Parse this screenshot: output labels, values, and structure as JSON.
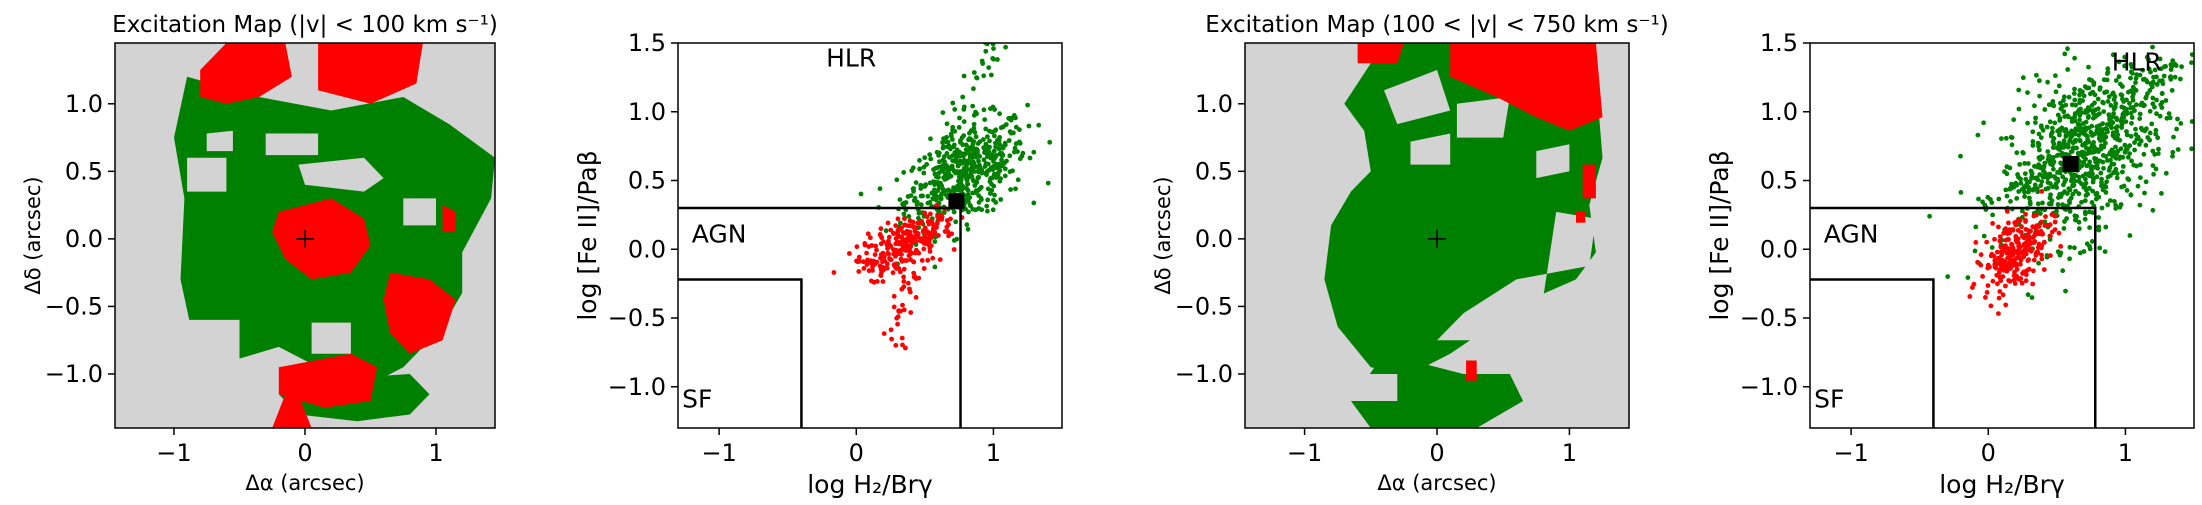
{
  "chart_data": [
    {
      "type": "heatmap",
      "title": "Excitation Map (|v| < 100 km s⁻¹)",
      "xlabel": "Δα (arcsec)",
      "ylabel": "Δδ (arcsec)",
      "xlim": [
        -1.45,
        1.45
      ],
      "ylim": [
        -1.4,
        1.45
      ],
      "xticks": [
        -1,
        0,
        1
      ],
      "yticks": [
        -1.0,
        -0.5,
        0.0,
        0.5,
        1.0
      ],
      "background_color": "#d3d3d3",
      "region_colors": {
        "HLR": "#008000",
        "AGN": "#ff0000"
      },
      "green_regions": [
        [
          [
            -0.9,
            1.2
          ],
          [
            -0.35,
            1.05
          ],
          [
            0.2,
            0.95
          ],
          [
            0.75,
            1.05
          ],
          [
            1.1,
            0.85
          ],
          [
            1.45,
            0.6
          ],
          [
            1.42,
            0.3
          ],
          [
            1.2,
            -0.1
          ],
          [
            1.2,
            -0.4
          ],
          [
            1.05,
            -0.65
          ],
          [
            0.75,
            -0.95
          ],
          [
            0.55,
            -1.05
          ],
          [
            0.1,
            -0.95
          ],
          [
            -0.2,
            -0.8
          ],
          [
            -0.55,
            -0.9
          ],
          [
            -0.85,
            -0.75
          ],
          [
            -0.95,
            -0.3
          ],
          [
            -0.92,
            0.3
          ],
          [
            -1.0,
            0.75
          ]
        ],
        [
          [
            0.0,
            -1.05
          ],
          [
            0.8,
            -1.0
          ],
          [
            0.95,
            -1.15
          ],
          [
            0.8,
            -1.3
          ],
          [
            0.4,
            -1.35
          ],
          [
            -0.05,
            -1.3
          ],
          [
            -0.2,
            -1.15
          ]
        ]
      ],
      "grey_holes": [
        [
          [
            -0.75,
            0.78
          ],
          [
            -0.55,
            0.8
          ],
          [
            -0.55,
            0.65
          ],
          [
            -0.75,
            0.65
          ]
        ],
        [
          [
            -0.3,
            0.78
          ],
          [
            0.1,
            0.78
          ],
          [
            0.1,
            0.62
          ],
          [
            -0.3,
            0.62
          ]
        ],
        [
          [
            -0.9,
            0.6
          ],
          [
            -0.6,
            0.6
          ],
          [
            -0.6,
            0.35
          ],
          [
            -0.9,
            0.35
          ]
        ],
        [
          [
            -0.05,
            0.55
          ],
          [
            0.45,
            0.6
          ],
          [
            0.6,
            0.45
          ],
          [
            0.45,
            0.35
          ],
          [
            0.0,
            0.4
          ]
        ],
        [
          [
            0.75,
            0.3
          ],
          [
            1.0,
            0.3
          ],
          [
            1.0,
            0.1
          ],
          [
            0.75,
            0.1
          ]
        ],
        [
          [
            -0.9,
            -0.6
          ],
          [
            -0.5,
            -0.6
          ],
          [
            -0.5,
            -0.9
          ],
          [
            -0.9,
            -0.9
          ]
        ],
        [
          [
            0.05,
            -0.62
          ],
          [
            0.35,
            -0.62
          ],
          [
            0.35,
            -0.85
          ],
          [
            0.05,
            -0.85
          ]
        ]
      ],
      "red_regions": [
        [
          [
            -0.6,
            1.45
          ],
          [
            -0.15,
            1.45
          ],
          [
            -0.1,
            1.2
          ],
          [
            -0.35,
            1.05
          ],
          [
            -0.6,
            1.0
          ],
          [
            -0.8,
            1.05
          ],
          [
            -0.8,
            1.25
          ]
        ],
        [
          [
            0.1,
            1.45
          ],
          [
            0.9,
            1.45
          ],
          [
            0.85,
            1.15
          ],
          [
            0.5,
            1.0
          ],
          [
            0.1,
            1.1
          ]
        ],
        [
          [
            -0.2,
            0.2
          ],
          [
            0.2,
            0.3
          ],
          [
            0.45,
            0.15
          ],
          [
            0.5,
            -0.05
          ],
          [
            0.35,
            -0.25
          ],
          [
            0.05,
            -0.3
          ],
          [
            -0.15,
            -0.15
          ],
          [
            -0.25,
            0.05
          ]
        ],
        [
          [
            1.05,
            0.25
          ],
          [
            1.15,
            0.2
          ],
          [
            1.15,
            0.05
          ],
          [
            1.05,
            0.05
          ]
        ],
        [
          [
            0.65,
            -0.25
          ],
          [
            0.95,
            -0.3
          ],
          [
            1.15,
            -0.45
          ],
          [
            1.05,
            -0.75
          ],
          [
            0.8,
            -0.85
          ],
          [
            0.65,
            -0.7
          ],
          [
            0.6,
            -0.45
          ]
        ],
        [
          [
            -0.2,
            -0.95
          ],
          [
            0.35,
            -0.85
          ],
          [
            0.55,
            -0.95
          ],
          [
            0.5,
            -1.2
          ],
          [
            0.15,
            -1.25
          ],
          [
            -0.2,
            -1.15
          ]
        ],
        [
          [
            -0.15,
            -1.15
          ],
          [
            -0.05,
            -1.15
          ],
          [
            0.05,
            -1.4
          ],
          [
            -0.25,
            -1.4
          ]
        ]
      ],
      "center_marker": [
        0,
        0
      ]
    },
    {
      "type": "scatter",
      "xlabel": "log H₂/Brγ",
      "ylabel": "log [Fe II]/Paβ",
      "xlim": [
        -1.3,
        1.5
      ],
      "ylim": [
        -1.3,
        1.5
      ],
      "xticks": [
        -1,
        0,
        1
      ],
      "yticks": [
        -1.0,
        -0.5,
        0.0,
        0.5,
        1.0,
        1.5
      ],
      "region_labels": [
        {
          "text": "HLR",
          "x": -0.22,
          "y": 1.33,
          "color": "#008000"
        },
        {
          "text": "AGN",
          "x": -1.2,
          "y": 0.05,
          "color": "#ff0000"
        },
        {
          "text": "SF",
          "x": -1.27,
          "y": -1.15,
          "color": "#0000cc"
        }
      ],
      "boundaries": {
        "agn_line": {
          "x": [
            -1.3,
            0.76,
            0.76
          ],
          "y": [
            0.3,
            0.3,
            -1.3
          ]
        },
        "sf_line": {
          "x": [
            -1.3,
            -0.4,
            -0.4
          ],
          "y": [
            -0.22,
            -0.22,
            -1.3
          ]
        }
      },
      "series": [
        {
          "color": "#008000",
          "center": [
            0.8,
            0.55
          ],
          "spread": [
            0.22,
            0.17
          ],
          "count": 520,
          "tail": {
            "from": [
              0.4,
              0.3
            ],
            "to": [
              1.0,
              1.5
            ],
            "count": 50
          }
        },
        {
          "color": "#ff0000",
          "center": [
            0.35,
            0.03
          ],
          "spread": [
            0.18,
            0.09
          ],
          "count": 260,
          "tail": {
            "from": [
              0.4,
              -0.1
            ],
            "to": [
              0.3,
              -0.72
            ],
            "count": 30
          }
        }
      ],
      "marker": {
        "x": 0.73,
        "y": 0.35,
        "color": "#000000"
      }
    },
    {
      "type": "heatmap",
      "title": "Excitation Map (100 < |v| < 750 km s⁻¹)",
      "xlabel": "Δα (arcsec)",
      "ylabel": "Δδ (arcsec)",
      "xlim": [
        -1.45,
        1.45
      ],
      "ylim": [
        -1.4,
        1.45
      ],
      "xticks": [
        -1,
        0,
        1
      ],
      "yticks": [
        -1.0,
        -0.5,
        0.0,
        0.5,
        1.0
      ],
      "background_color": "#d3d3d3",
      "region_colors": {
        "HLR": "#008000",
        "AGN": "#ff0000"
      },
      "green_regions": [
        [
          [
            -0.7,
            1.0
          ],
          [
            -0.5,
            1.3
          ],
          [
            -0.3,
            1.45
          ],
          [
            0.7,
            1.45
          ],
          [
            1.2,
            1.2
          ],
          [
            1.25,
            0.6
          ],
          [
            1.15,
            0.25
          ],
          [
            1.2,
            -0.1
          ],
          [
            1.05,
            -0.3
          ],
          [
            0.7,
            -0.45
          ],
          [
            0.4,
            -0.65
          ],
          [
            0.1,
            -0.85
          ],
          [
            -0.2,
            -1.0
          ],
          [
            -0.5,
            -0.95
          ],
          [
            -0.75,
            -0.65
          ],
          [
            -0.85,
            -0.3
          ],
          [
            -0.8,
            0.1
          ],
          [
            -0.65,
            0.35
          ],
          [
            -0.5,
            0.5
          ],
          [
            -0.55,
            0.8
          ]
        ],
        [
          [
            -0.4,
            -0.85
          ],
          [
            0.2,
            -1.0
          ],
          [
            0.55,
            -1.0
          ],
          [
            0.65,
            -1.2
          ],
          [
            0.3,
            -1.4
          ],
          [
            -0.5,
            -1.4
          ],
          [
            -0.65,
            -1.2
          ]
        ]
      ],
      "grey_holes": [
        [
          [
            -0.4,
            1.1
          ],
          [
            0.0,
            1.25
          ],
          [
            0.1,
            0.95
          ],
          [
            -0.3,
            0.85
          ]
        ],
        [
          [
            0.15,
            1.0
          ],
          [
            0.55,
            1.05
          ],
          [
            0.5,
            0.75
          ],
          [
            0.15,
            0.75
          ]
        ],
        [
          [
            0.75,
            0.65
          ],
          [
            1.0,
            0.7
          ],
          [
            1.0,
            0.5
          ],
          [
            0.75,
            0.45
          ]
        ],
        [
          [
            -0.2,
            0.72
          ],
          [
            0.1,
            0.78
          ],
          [
            0.1,
            0.55
          ],
          [
            -0.2,
            0.55
          ]
        ],
        [
          [
            0.9,
            0.2
          ],
          [
            1.2,
            0.15
          ],
          [
            1.15,
            -0.2
          ],
          [
            0.6,
            -0.3
          ],
          [
            0.2,
            -0.55
          ],
          [
            0.0,
            -0.75
          ],
          [
            0.4,
            -0.75
          ],
          [
            0.8,
            -0.45
          ]
        ],
        [
          [
            -0.7,
            -1.0
          ],
          [
            -0.3,
            -1.0
          ],
          [
            -0.3,
            -1.2
          ],
          [
            -0.7,
            -1.2
          ]
        ]
      ],
      "red_regions": [
        [
          [
            0.1,
            1.45
          ],
          [
            1.2,
            1.45
          ],
          [
            1.25,
            0.9
          ],
          [
            1.0,
            0.8
          ],
          [
            0.75,
            0.9
          ],
          [
            0.45,
            1.05
          ],
          [
            0.1,
            1.2
          ]
        ],
        [
          [
            -0.6,
            1.45
          ],
          [
            -0.25,
            1.45
          ],
          [
            -0.3,
            1.3
          ],
          [
            -0.6,
            1.3
          ]
        ],
        [
          [
            1.1,
            0.55
          ],
          [
            1.2,
            0.55
          ],
          [
            1.2,
            0.3
          ],
          [
            1.1,
            0.3
          ]
        ],
        [
          [
            1.05,
            0.2
          ],
          [
            1.12,
            0.2
          ],
          [
            1.12,
            0.12
          ],
          [
            1.05,
            0.12
          ]
        ],
        [
          [
            0.22,
            -0.9
          ],
          [
            0.3,
            -0.9
          ],
          [
            0.3,
            -1.05
          ],
          [
            0.22,
            -1.05
          ]
        ]
      ],
      "center_marker": [
        0,
        0
      ]
    },
    {
      "type": "scatter",
      "xlabel": "log H₂/Brγ",
      "ylabel": "log [Fe II]/Paβ",
      "xlim": [
        -1.3,
        1.5
      ],
      "ylim": [
        -1.3,
        1.5
      ],
      "xticks": [
        -1,
        0,
        1
      ],
      "yticks": [
        -1.0,
        -0.5,
        0.0,
        0.5,
        1.0,
        1.5
      ],
      "region_labels": [
        {
          "text": "HLR",
          "x": 0.9,
          "y": 1.3,
          "color": "#008000"
        },
        {
          "text": "AGN",
          "x": -1.2,
          "y": 0.05,
          "color": "#ff0000"
        },
        {
          "text": "SF",
          "x": -1.27,
          "y": -1.15,
          "color": "#0000cc"
        }
      ],
      "boundaries": {
        "agn_line": {
          "x": [
            -1.3,
            0.78,
            0.78
          ],
          "y": [
            0.3,
            0.3,
            -1.3
          ]
        },
        "sf_line": {
          "x": [
            -1.3,
            -0.4,
            -0.4
          ],
          "y": [
            -0.22,
            -0.22,
            -1.3
          ]
        }
      },
      "series": [
        {
          "color": "#008000",
          "center": [
            0.7,
            0.7
          ],
          "spread": [
            0.3,
            0.3
          ],
          "count": 780,
          "tail": {
            "from": [
              0.1,
              0.35
            ],
            "to": [
              1.45,
              1.4
            ],
            "count": 120
          }
        },
        {
          "color": "#ff0000",
          "center": [
            0.2,
            -0.02
          ],
          "spread": [
            0.12,
            0.13
          ],
          "count": 210,
          "tail": {
            "from": [
              0.45,
              0.25
            ],
            "to": [
              -0.05,
              -0.25
            ],
            "count": 40
          }
        }
      ],
      "marker": {
        "x": 0.6,
        "y": 0.62,
        "color": "#000000"
      }
    }
  ]
}
